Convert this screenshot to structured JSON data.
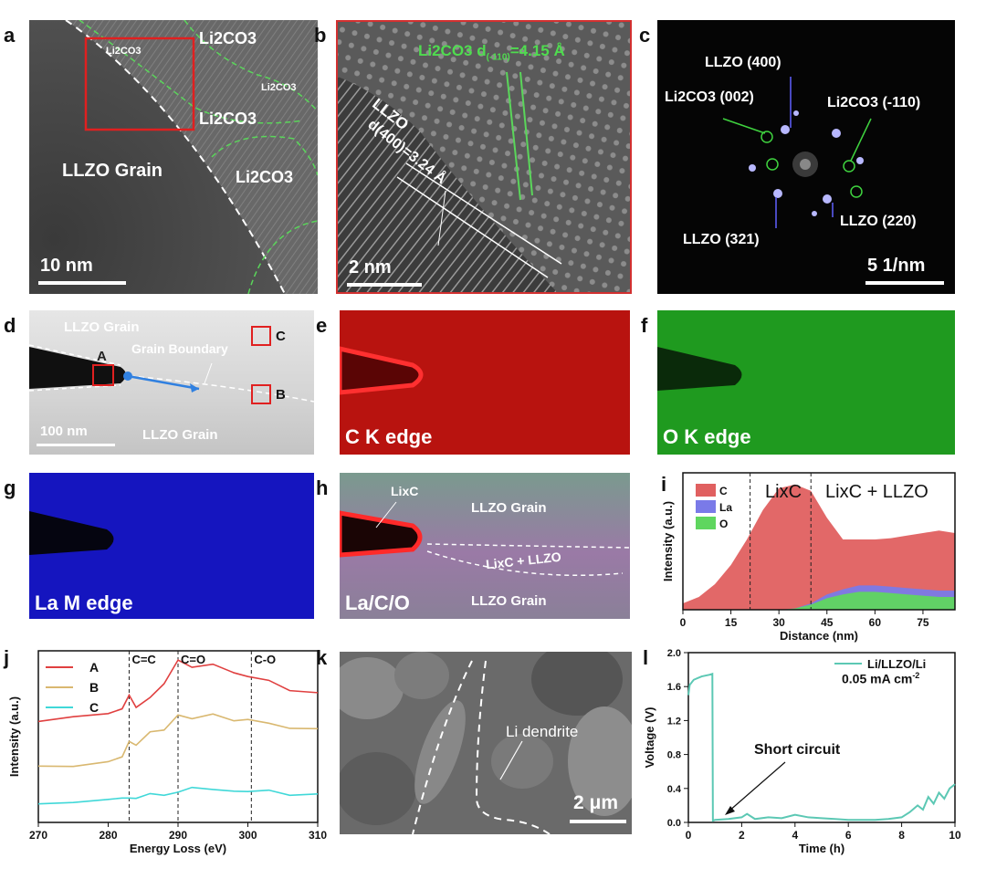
{
  "panels": {
    "a": {
      "label": "a",
      "regions": [
        "Li2CO3",
        "Li2CO3",
        "Li2CO3",
        "Li2CO3",
        "Li2CO3"
      ],
      "grain": "LLZO Grain",
      "scale": "10 nm"
    },
    "b": {
      "label": "b",
      "phase_a": "Li2CO3 d",
      "sub_a": "(-110)",
      "val_a": "=4.15 Å",
      "phase_b": "LLZO",
      "sub_b": "d(400)",
      "val_b": "=3.24 Å",
      "scale": "2 nm"
    },
    "c": {
      "label": "c",
      "spots": [
        "LLZO (400)",
        "Li2CO3 (002)",
        "Li2CO3 (-110)",
        "LLZO (321)",
        "LLZO (220)"
      ],
      "scale": "5 1/nm"
    },
    "d": {
      "label": "d",
      "grain_top": "LLZO Grain",
      "boundary": "Grain Boundary",
      "grain_bottom": "LLZO Grain",
      "box_a": "A",
      "box_b": "B",
      "box_c": "C",
      "scale": "100 nm"
    },
    "e": {
      "label": "e",
      "caption": "C K edge"
    },
    "f": {
      "label": "f",
      "caption": "O K edge"
    },
    "g": {
      "label": "g",
      "caption": "La M edge"
    },
    "h": {
      "label": "h",
      "lixc": "LixC",
      "grain_top": "LLZO Grain",
      "mix": "LixC + LLZO",
      "grain_bottom": "LLZO Grain",
      "caption": "La/C/O"
    },
    "i": {
      "label": "i",
      "region1": "LixC",
      "region2": "LixC + LLZO"
    },
    "j": {
      "label": "j",
      "peaks": [
        "C=C",
        "C=O",
        "C-O"
      ]
    },
    "k": {
      "label": "k",
      "annotation": "Li dendrite",
      "scale": "2 μm"
    },
    "l": {
      "label": "l",
      "legend": "Li/LLZO/Li",
      "current": "0.05 mA cm",
      "current_exp": "-2",
      "annotation": "Short circuit"
    }
  },
  "colors": {
    "red": "#e8342c",
    "green": "#35c435",
    "blue": "#1a1acf",
    "cyan": "#3fd6d6",
    "teal": "#5cc8b4"
  },
  "chart_data": [
    {
      "panel": "i",
      "type": "area",
      "xlabel": "Distance (nm)",
      "ylabel": "Intensity (a.u.)",
      "xlim": [
        0,
        85
      ],
      "xticks": [
        0,
        15,
        30,
        45,
        60,
        75
      ],
      "vlines": [
        21,
        40
      ],
      "series": [
        {
          "name": "C",
          "color": "#e06060",
          "x": [
            0,
            5,
            10,
            15,
            20,
            25,
            30,
            35,
            40,
            45,
            50,
            55,
            60,
            65,
            70,
            75,
            80,
            85
          ],
          "y": [
            0.05,
            0.1,
            0.2,
            0.35,
            0.55,
            0.78,
            0.95,
            0.98,
            0.93,
            0.72,
            0.55,
            0.55,
            0.55,
            0.56,
            0.58,
            0.6,
            0.62,
            0.6
          ]
        },
        {
          "name": "La",
          "color": "#7a7ae8",
          "x": [
            0,
            30,
            35,
            40,
            45,
            50,
            55,
            60,
            65,
            70,
            75,
            80,
            85
          ],
          "y": [
            0,
            0,
            0.01,
            0.05,
            0.12,
            0.16,
            0.19,
            0.19,
            0.18,
            0.17,
            0.16,
            0.15,
            0.15
          ]
        },
        {
          "name": "O",
          "color": "#5fd65f",
          "x": [
            0,
            30,
            35,
            40,
            45,
            50,
            55,
            60,
            65,
            70,
            75,
            80,
            85
          ],
          "y": [
            0,
            0,
            0.01,
            0.04,
            0.09,
            0.12,
            0.14,
            0.14,
            0.13,
            0.12,
            0.11,
            0.1,
            0.1
          ]
        }
      ]
    },
    {
      "panel": "j",
      "type": "line",
      "xlabel": "Energy Loss (eV)",
      "ylabel": "Intensity (a.u.)",
      "xlim": [
        270,
        310
      ],
      "xticks": [
        270,
        280,
        290,
        300,
        310
      ],
      "vlines": [
        283,
        290,
        300.5
      ],
      "series": [
        {
          "name": "A",
          "color": "#e04040",
          "x": [
            270,
            275,
            280,
            282,
            283,
            284,
            286,
            288,
            290,
            292,
            295,
            298,
            300,
            303,
            306,
            310
          ],
          "y": [
            0.6,
            0.62,
            0.63,
            0.65,
            0.75,
            0.67,
            0.72,
            0.82,
            0.95,
            0.9,
            0.91,
            0.88,
            0.85,
            0.82,
            0.78,
            0.76
          ]
        },
        {
          "name": "B",
          "color": "#d9b870",
          "x": [
            270,
            275,
            280,
            282,
            283,
            284,
            286,
            288,
            290,
            292,
            295,
            298,
            300,
            303,
            306,
            310
          ],
          "y": [
            0.34,
            0.33,
            0.35,
            0.37,
            0.48,
            0.45,
            0.52,
            0.55,
            0.63,
            0.6,
            0.62,
            0.6,
            0.6,
            0.57,
            0.56,
            0.55
          ]
        },
        {
          "name": "C",
          "color": "#40d8d8",
          "x": [
            270,
            275,
            280,
            282,
            283,
            284,
            286,
            288,
            290,
            292,
            295,
            298,
            300,
            303,
            306,
            310
          ],
          "y": [
            0.12,
            0.12,
            0.13,
            0.13,
            0.15,
            0.14,
            0.16,
            0.17,
            0.18,
            0.2,
            0.18,
            0.19,
            0.18,
            0.18,
            0.17,
            0.17
          ]
        }
      ]
    },
    {
      "panel": "l",
      "type": "line",
      "xlabel": "Time (h)",
      "ylabel": "Voltage (V)",
      "xlim": [
        0,
        10
      ],
      "ylim": [
        0,
        2.0
      ],
      "xticks": [
        0,
        2,
        4,
        6,
        8,
        10
      ],
      "yticks": [
        0.0,
        0.4,
        0.8,
        1.2,
        1.6,
        2.0
      ],
      "series": [
        {
          "name": "Li/LLZO/Li",
          "color": "#5cc8b4",
          "x": [
            0,
            0.05,
            0.2,
            0.5,
            0.8,
            0.9,
            0.92,
            1.0,
            1.5,
            2.0,
            2.2,
            2.5,
            3.0,
            3.5,
            4.0,
            4.5,
            5.0,
            5.5,
            6.0,
            6.5,
            7.0,
            7.5,
            8.0,
            8.3,
            8.6,
            8.8,
            9.0,
            9.2,
            9.4,
            9.6,
            9.8,
            10.0
          ],
          "y": [
            1.5,
            1.62,
            1.68,
            1.72,
            1.74,
            1.75,
            0.02,
            0.03,
            0.04,
            0.06,
            0.1,
            0.04,
            0.06,
            0.05,
            0.09,
            0.06,
            0.05,
            0.04,
            0.03,
            0.03,
            0.03,
            0.04,
            0.06,
            0.12,
            0.2,
            0.15,
            0.3,
            0.22,
            0.35,
            0.28,
            0.4,
            0.45
          ]
        }
      ]
    }
  ]
}
